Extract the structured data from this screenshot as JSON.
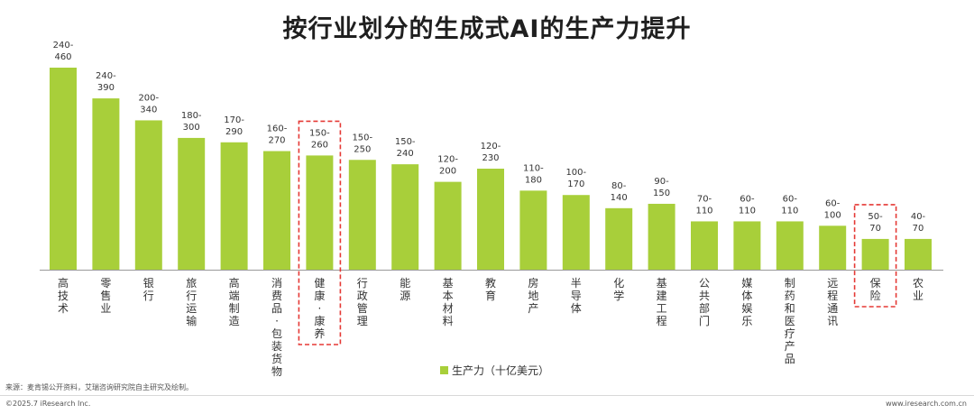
{
  "title": "按行业划分的生成式AI的生产力提升",
  "legend_label": "生产力（十亿美元）",
  "source": "来源：麦肯锡公开资料，艾瑞咨询研究院自主研究及绘制。",
  "copyright": "©2025.7 iResearch Inc.",
  "website": "www.iresearch.com.cn",
  "colors": {
    "bar": "#a8cf3a",
    "highlight_box": "#e53935",
    "axis": "#999999"
  },
  "chart_data": {
    "type": "bar",
    "title": "按行业划分的生成式AI的生产力提升",
    "categories": [
      "高技术",
      "零售业",
      "银行",
      "旅行运输",
      "高端制造",
      "消费品-包装货物",
      "健康-康养",
      "行政管理",
      "能源",
      "基本材料",
      "教育",
      "房地产",
      "半导体",
      "化学",
      "基建工程",
      "公共部门",
      "媒体娱乐",
      "制药和医疗产品",
      "远程通讯",
      "保险",
      "农业"
    ],
    "values": [
      460,
      390,
      340,
      300,
      290,
      270,
      260,
      250,
      240,
      200,
      230,
      180,
      170,
      140,
      150,
      110,
      110,
      110,
      100,
      70,
      70
    ],
    "range_labels": [
      "240-\n460",
      "240-\n390",
      "200-\n340",
      "180-\n300",
      "170-\n290",
      "160-\n270",
      "150-\n260",
      "150-\n250",
      "150-\n240",
      "120-\n200",
      "120-\n230",
      "110-\n180",
      "100-\n170",
      "80-\n140",
      "90-\n150",
      "70-\n110",
      "60-\n110",
      "60-\n110",
      "60-\n100",
      "50-\n70",
      "40-\n70"
    ],
    "highlighted": [
      "健康-康养",
      "保险"
    ],
    "series": [
      {
        "name": "生产力（十亿美元）",
        "values": [
          460,
          390,
          340,
          300,
          290,
          270,
          260,
          250,
          240,
          200,
          230,
          180,
          170,
          140,
          150,
          110,
          110,
          110,
          100,
          70,
          70
        ]
      }
    ],
    "ylim": [
      0,
      480
    ],
    "grid": false,
    "legend_position": "bottom-center"
  }
}
